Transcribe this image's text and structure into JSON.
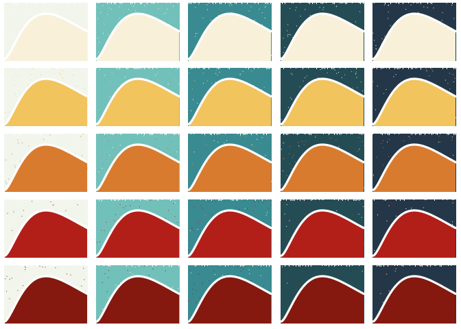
{
  "palette": {
    "backgrounds": [
      "#f1f5ec",
      "#72c0ba",
      "#398b91",
      "#244c55",
      "#233748"
    ],
    "fills": [
      "#f8f0d9",
      "#f2c45e",
      "#d97b2e",
      "#b21f19",
      "#85190f"
    ],
    "curve": "#ffffff",
    "page": "#ffffff"
  },
  "curve_shape": "right-skewed-peak",
  "rows": 5,
  "cols": 5
}
